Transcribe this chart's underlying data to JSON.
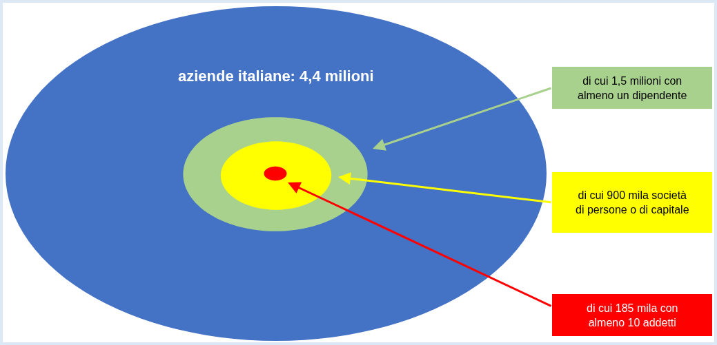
{
  "chart_data": {
    "type": "other",
    "categories": [
      null,
      null,
      null,
      null
    ],
    "values": [
      4.4,
      1.5,
      0.9,
      0.185
    ],
    "value_labels": [
      "aziende italiane: 4,4 milioni",
      "di cui 1,5 milioni con almeno un dipendente",
      "di cui 900 mila società di persone o di capitale",
      "di cui 185 mila con almeno 10 addetti"
    ],
    "colors": [
      "#4472c4",
      "#a9d18e",
      "#ffff00",
      "#ff0000"
    ]
  }
}
